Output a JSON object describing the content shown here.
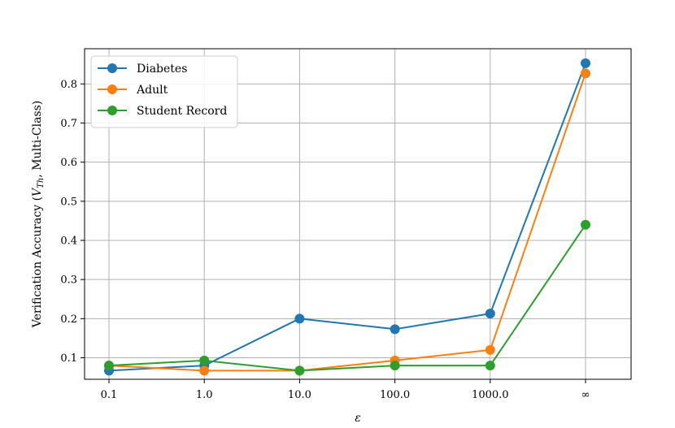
{
  "chart_data": {
    "type": "line",
    "categories": [
      "0.1",
      "1.0",
      "10.0",
      "100.0",
      "1000.0",
      "∞"
    ],
    "xlabel": "ε",
    "ylabel": "Verification Accuracy (",
    "ylabel_var": "V",
    "ylabel_sub": "Th",
    "ylabel_suffix": ", Multi-Class)",
    "ylim": [
      0.045,
      0.89
    ],
    "yticks": [
      0.1,
      0.2,
      0.3,
      0.4,
      0.5,
      0.6,
      0.7,
      0.8
    ],
    "ytick_labels": [
      "0.1",
      "0.2",
      "0.3",
      "0.4",
      "0.5",
      "0.6",
      "0.7",
      "0.8"
    ],
    "grid": true,
    "legend_position": "top-left",
    "series": [
      {
        "name": "Diabetes",
        "color": "#1f77b4",
        "values": [
          0.067,
          0.08,
          0.2,
          0.173,
          0.213,
          0.853
        ]
      },
      {
        "name": "Adult",
        "color": "#ff7f0e",
        "values": [
          0.08,
          0.067,
          0.067,
          0.093,
          0.12,
          0.827
        ]
      },
      {
        "name": "Student Record",
        "color": "#2ca02c",
        "values": [
          0.08,
          0.093,
          0.067,
          0.08,
          0.08,
          0.44
        ]
      }
    ]
  }
}
